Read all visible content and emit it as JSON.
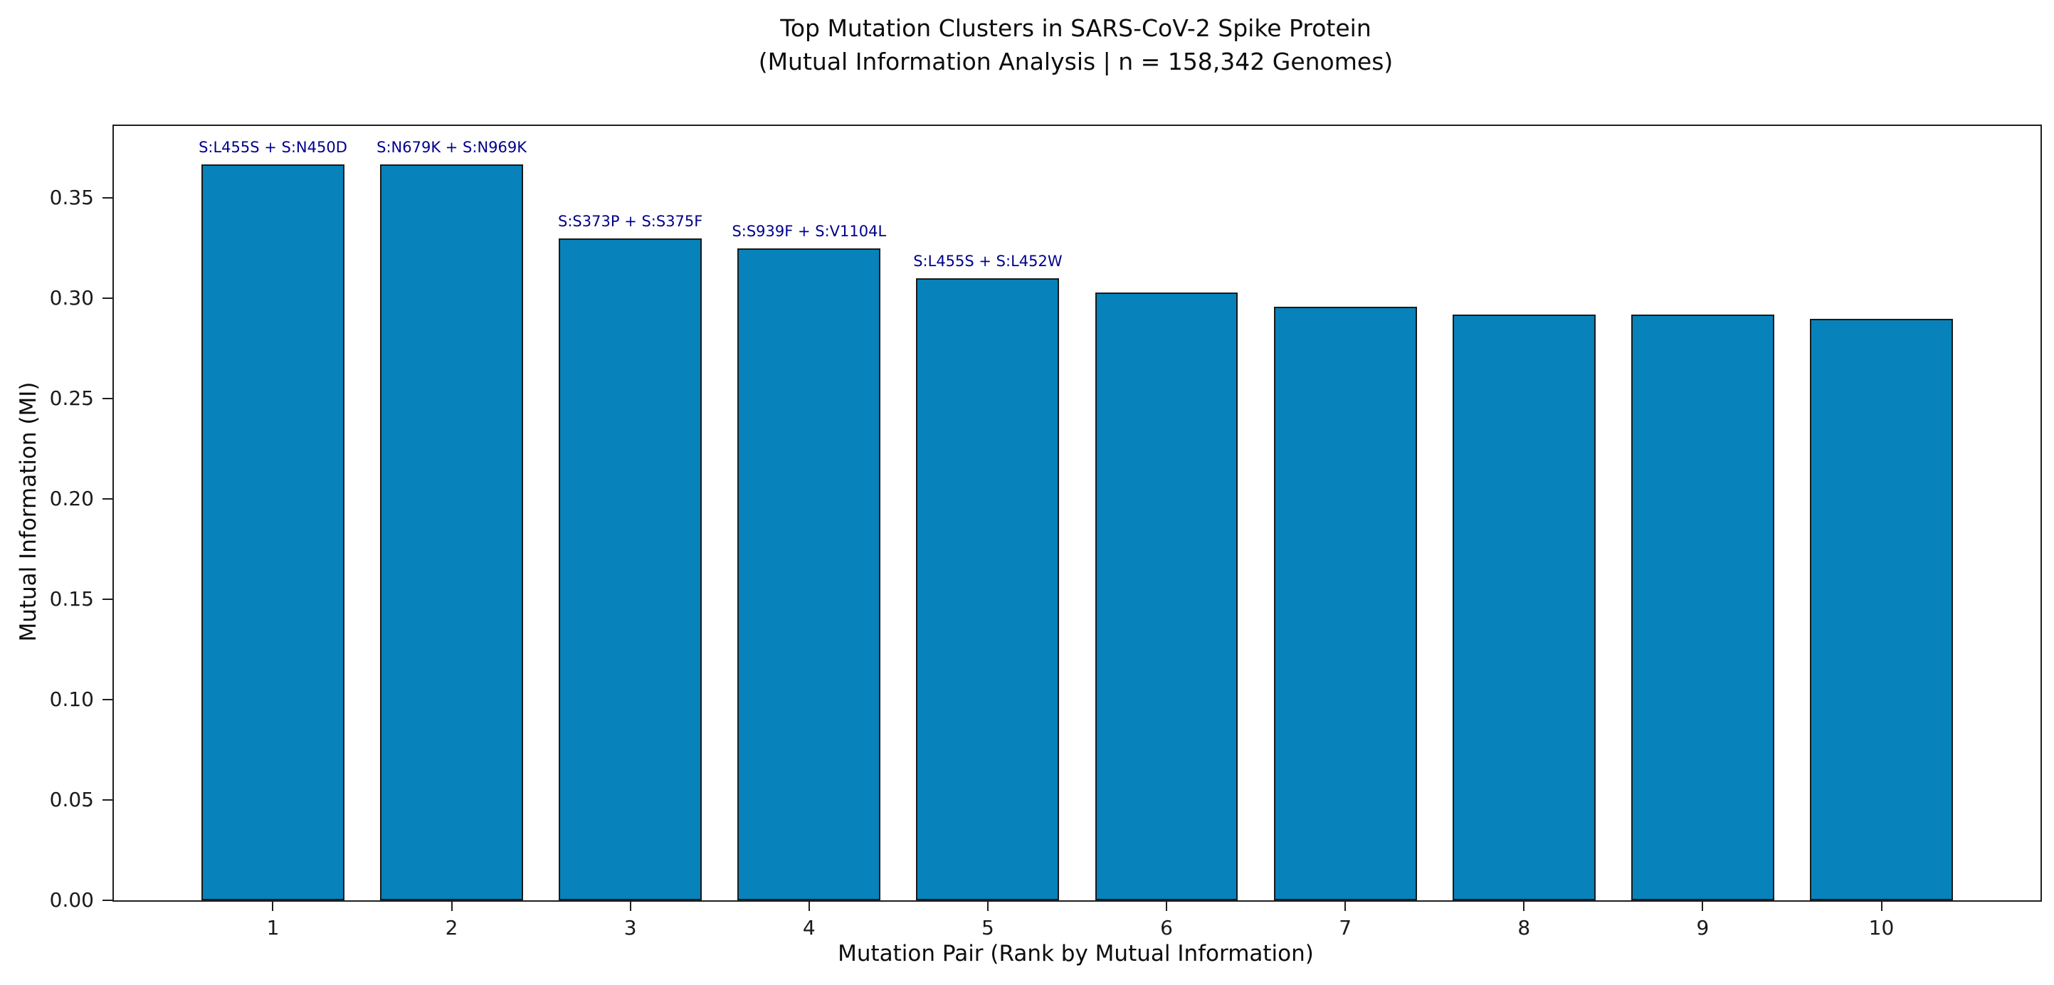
{
  "title": {
    "line1": "Top Mutation Clusters in SARS-CoV-2 Spike Protein",
    "line2": "(Mutual Information Analysis | n = 158,342 Genomes)"
  },
  "chart_data": {
    "type": "bar",
    "title": "Top Mutation Clusters in SARS-CoV-2 Spike Protein (Mutual Information Analysis | n = 158,342 Genomes)",
    "xlabel": "Mutation Pair (Rank by Mutual Information)",
    "ylabel": "Mutual Information (MI)",
    "categories": [
      "1",
      "2",
      "3",
      "4",
      "5",
      "6",
      "7",
      "8",
      "9",
      "10"
    ],
    "values": [
      0.367,
      0.367,
      0.33,
      0.325,
      0.31,
      0.303,
      0.296,
      0.292,
      0.292,
      0.29
    ],
    "bar_annotations": [
      "S:L455S + S:N450D",
      "S:N679K + S:N969K",
      "S:S373P + S:S375F",
      "S:S939F + S:V1104L",
      "S:L455S + S:L452W",
      "",
      "",
      "",
      "",
      ""
    ],
    "ytick_labels": [
      "0.00",
      "0.05",
      "0.10",
      "0.15",
      "0.20",
      "0.25",
      "0.30",
      "0.35"
    ],
    "ylim": [
      0,
      0.386
    ],
    "grid": false,
    "legend": null,
    "colors": {
      "bar_fill": "#0782BA",
      "bar_edge": "#1a1a1a",
      "annotation_text": "#00008B",
      "axis_text": "#1a1a1a"
    }
  }
}
